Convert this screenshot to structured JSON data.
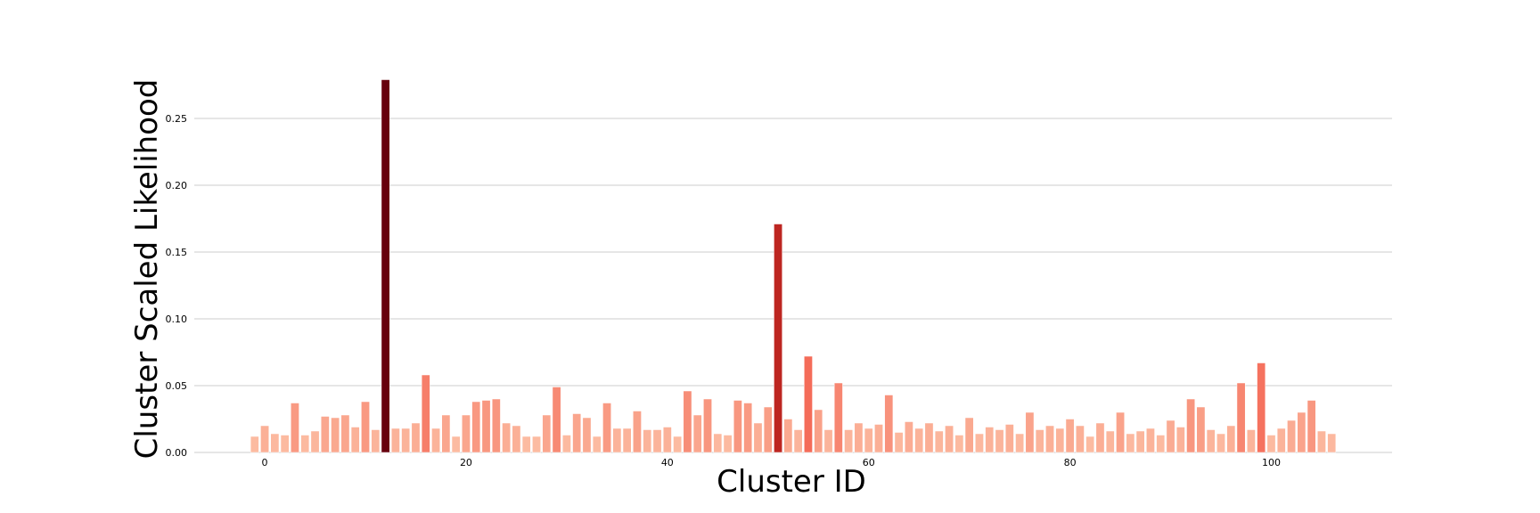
{
  "chart_data": {
    "type": "bar",
    "title": "",
    "xlabel": "Cluster ID",
    "ylabel": "Cluster Scaled Likelihood",
    "xlim": [
      -7,
      112
    ],
    "ylim": [
      0,
      0.28
    ],
    "grid": "horizontal",
    "xticks": [
      "0",
      "20",
      "40",
      "60",
      "80",
      "100"
    ],
    "xtick_values": [
      0,
      20,
      40,
      60,
      80,
      100
    ],
    "yticks": [
      "0.00",
      "0.05",
      "0.10",
      "0.15",
      "0.20",
      "0.25"
    ],
    "ytick_values": [
      0,
      0.05,
      0.1,
      0.15,
      0.2,
      0.25
    ],
    "x_start": -1,
    "values": [
      0.012,
      0.02,
      0.014,
      0.013,
      0.037,
      0.013,
      0.016,
      0.027,
      0.026,
      0.028,
      0.019,
      0.038,
      0.017,
      0.279,
      0.018,
      0.018,
      0.022,
      0.058,
      0.018,
      0.028,
      0.012,
      0.028,
      0.038,
      0.039,
      0.04,
      0.022,
      0.02,
      0.012,
      0.012,
      0.028,
      0.049,
      0.013,
      0.029,
      0.026,
      0.012,
      0.037,
      0.018,
      0.018,
      0.031,
      0.017,
      0.017,
      0.019,
      0.012,
      0.046,
      0.028,
      0.04,
      0.014,
      0.013,
      0.039,
      0.037,
      0.022,
      0.034,
      0.171,
      0.025,
      0.017,
      0.072,
      0.032,
      0.017,
      0.052,
      0.017,
      0.022,
      0.018,
      0.021,
      0.043,
      0.015,
      0.023,
      0.018,
      0.022,
      0.016,
      0.02,
      0.013,
      0.026,
      0.014,
      0.019,
      0.017,
      0.021,
      0.014,
      0.03,
      0.017,
      0.02,
      0.018,
      0.025,
      0.02,
      0.012,
      0.022,
      0.016,
      0.03,
      0.014,
      0.016,
      0.018,
      0.013,
      0.024,
      0.019,
      0.04,
      0.034,
      0.017,
      0.014,
      0.02,
      0.052,
      0.017,
      0.067,
      0.013,
      0.018,
      0.024,
      0.03,
      0.039,
      0.016,
      0.014
    ],
    "colormap": "Reds",
    "color_low": "#fcbba1",
    "color_mid": "#ef3b2c",
    "color_high": "#67000d"
  }
}
